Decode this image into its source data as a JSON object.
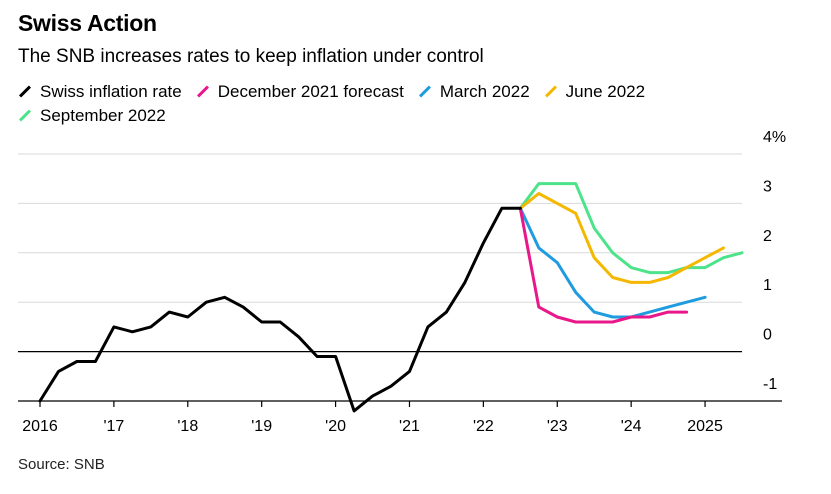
{
  "header": {
    "title": "Swiss Action",
    "subtitle": "The SNB increases rates to keep inflation under control"
  },
  "footer": {
    "source": "Source: SNB"
  },
  "chart_data": {
    "type": "line",
    "title": "Swiss Action",
    "subtitle": "The SNB increases rates to keep inflation under control",
    "xlabel": "",
    "ylabel": "",
    "ylim": [
      -1,
      4
    ],
    "xlim": [
      2016,
      2025.5
    ],
    "y_ticks": [
      {
        "value": 4,
        "label": "4%"
      },
      {
        "value": 3,
        "label": "3"
      },
      {
        "value": 2,
        "label": "2"
      },
      {
        "value": 1,
        "label": "1"
      },
      {
        "value": 0,
        "label": "0"
      },
      {
        "value": -1,
        "label": "-1"
      }
    ],
    "x_ticks": [
      {
        "value": 2016,
        "label": "2016"
      },
      {
        "value": 2017,
        "label": "'17"
      },
      {
        "value": 2018,
        "label": "'18"
      },
      {
        "value": 2019,
        "label": "'19"
      },
      {
        "value": 2020,
        "label": "'20"
      },
      {
        "value": 2021,
        "label": "'21"
      },
      {
        "value": 2022,
        "label": "'22"
      },
      {
        "value": 2023,
        "label": "'23"
      },
      {
        "value": 2024,
        "label": "'24"
      },
      {
        "value": 2025,
        "label": "2025"
      }
    ],
    "grid": true,
    "legend_position": "top",
    "series": [
      {
        "name": "Swiss inflation rate",
        "color": "#000000",
        "x": [
          2016.0,
          2016.25,
          2016.5,
          2016.75,
          2017.0,
          2017.25,
          2017.5,
          2017.75,
          2018.0,
          2018.25,
          2018.5,
          2018.75,
          2019.0,
          2019.25,
          2019.5,
          2019.75,
          2020.0,
          2020.25,
          2020.5,
          2020.75,
          2021.0,
          2021.25,
          2021.5,
          2021.75,
          2022.0,
          2022.25,
          2022.5
        ],
        "y": [
          -1.0,
          -0.4,
          -0.2,
          -0.2,
          0.5,
          0.4,
          0.5,
          0.8,
          0.7,
          1.0,
          1.1,
          0.9,
          0.6,
          0.6,
          0.3,
          -0.1,
          -0.1,
          -1.2,
          -0.9,
          -0.7,
          -0.4,
          0.5,
          0.8,
          1.4,
          2.2,
          2.9,
          2.9
        ]
      },
      {
        "name": "December 2021 forecast",
        "color": "#e8178a",
        "x": [
          2022.5,
          2022.75,
          2023.0,
          2023.25,
          2023.5,
          2023.75,
          2024.0,
          2024.25,
          2024.5,
          2024.75
        ],
        "y": [
          2.9,
          0.9,
          0.7,
          0.6,
          0.6,
          0.6,
          0.7,
          0.7,
          0.8,
          0.8
        ]
      },
      {
        "name": "March 2022",
        "color": "#1f9be0",
        "x": [
          2022.5,
          2022.75,
          2023.0,
          2023.25,
          2023.5,
          2023.75,
          2024.0,
          2024.25,
          2024.5,
          2024.75,
          2025.0
        ],
        "y": [
          2.9,
          2.1,
          1.8,
          1.2,
          0.8,
          0.7,
          0.7,
          0.8,
          0.9,
          1.0,
          1.1
        ]
      },
      {
        "name": "June 2022",
        "color": "#f5b800",
        "x": [
          2022.5,
          2022.75,
          2023.0,
          2023.25,
          2023.5,
          2023.75,
          2024.0,
          2024.25,
          2024.5,
          2024.75,
          2025.0,
          2025.25
        ],
        "y": [
          2.9,
          3.2,
          3.0,
          2.8,
          1.9,
          1.5,
          1.4,
          1.4,
          1.5,
          1.7,
          1.9,
          2.1
        ]
      },
      {
        "name": "September 2022",
        "color": "#4de38a",
        "x": [
          2022.5,
          2022.75,
          2023.0,
          2023.25,
          2023.5,
          2023.75,
          2024.0,
          2024.25,
          2024.5,
          2024.75,
          2025.0,
          2025.25,
          2025.5
        ],
        "y": [
          2.9,
          3.4,
          3.4,
          3.4,
          2.5,
          2.0,
          1.7,
          1.6,
          1.6,
          1.7,
          1.7,
          1.9,
          2.0
        ]
      }
    ]
  }
}
